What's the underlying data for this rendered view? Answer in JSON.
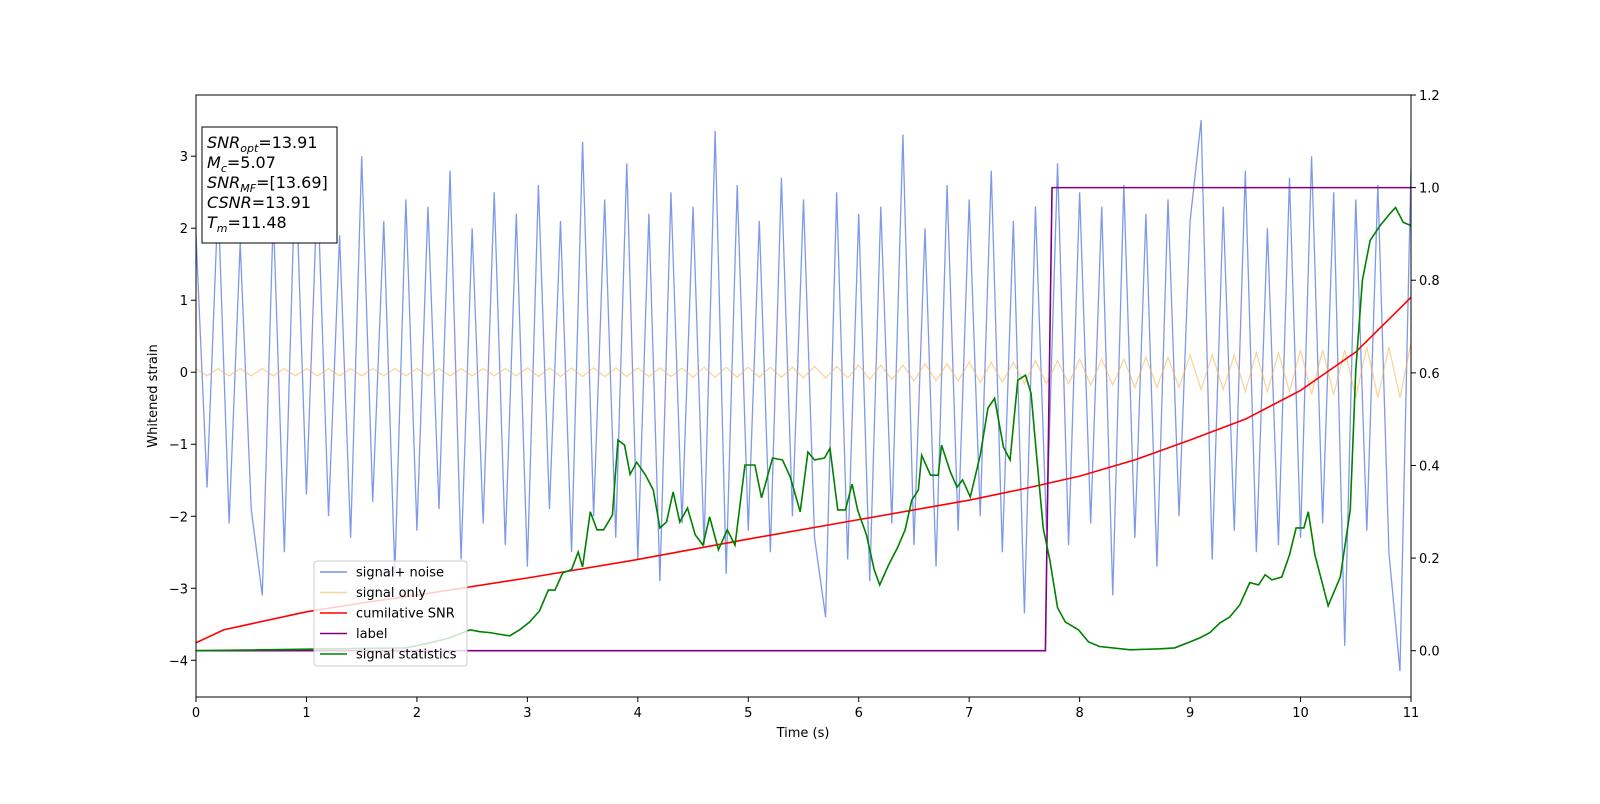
{
  "chart_data": {
    "type": "line",
    "xlabel": "Time (s)",
    "ylabel": "Whitened strain",
    "xlim": [
      0,
      11
    ],
    "xticks": [
      0,
      1,
      2,
      3,
      4,
      5,
      6,
      7,
      8,
      9,
      10,
      11
    ],
    "ylim": [
      -4.51,
      3.85
    ],
    "yticks": [
      {
        "value": -4,
        "label": "−4"
      },
      {
        "value": -3,
        "label": "−3"
      },
      {
        "value": -2,
        "label": "−2"
      },
      {
        "value": -1,
        "label": "−1"
      },
      0,
      1,
      2,
      3
    ],
    "y2lim": [
      -0.1,
      1.2
    ],
    "y2ticks": [
      {
        "value": 0,
        "label": "0.0"
      },
      0.2,
      0.4,
      0.6,
      0.8,
      {
        "value": 1,
        "label": "1.0"
      },
      1.2
    ],
    "grid": false,
    "annotation": [
      {
        "main": "SNR",
        "sub": "opt",
        "text": "=13.91"
      },
      {
        "main": "M",
        "sub": "c",
        "text": "=5.07"
      },
      {
        "main": "SNR",
        "sub": "MF",
        "text": "=[13.69]"
      },
      {
        "main": "CSNR",
        "text": "=13.91"
      },
      {
        "main": "T",
        "sub": "m",
        "text": "=11.48"
      }
    ],
    "x": [
      0,
      0.1,
      0.2,
      0.3,
      0.4,
      0.5,
      0.6,
      0.7,
      0.8,
      0.9,
      1,
      1.1,
      1.2,
      1.3,
      1.4,
      1.5,
      1.6,
      1.7,
      1.8,
      1.9,
      2,
      2.1,
      2.2,
      2.3,
      2.4,
      2.5,
      2.6,
      2.7,
      2.8,
      2.9,
      3,
      3.1,
      3.2,
      3.3,
      3.4,
      3.5,
      3.6,
      3.7,
      3.8,
      3.9,
      4,
      4.1,
      4.2,
      4.3,
      4.4,
      4.5,
      4.6,
      4.7,
      4.8,
      4.9,
      5,
      5.1,
      5.2,
      5.3,
      5.4,
      5.5,
      5.6,
      5.7,
      5.8,
      5.9,
      6,
      6.1,
      6.2,
      6.3,
      6.4,
      6.5,
      6.6,
      6.7,
      6.8,
      6.9,
      7,
      7.1,
      7.2,
      7.3,
      7.4,
      7.5,
      7.6,
      7.7,
      7.8,
      7.9,
      8,
      8.1,
      8.2,
      8.3,
      8.4,
      8.5,
      8.6,
      8.7,
      8.8,
      8.9,
      9,
      9.1,
      9.2,
      9.3,
      9.4,
      9.5,
      9.6,
      9.7,
      9.8,
      9.9,
      10,
      10.1,
      10.2,
      10.3,
      10.4,
      10.5,
      10.6,
      10.7,
      10.8,
      10.9,
      11
    ],
    "series": [
      {
        "name": "signal+ noise",
        "color": "#7793e8",
        "values": [
          1.9,
          -1.6,
          2.4,
          -2.1,
          1.8,
          -1.9,
          -3.1,
          2.2,
          -2.5,
          2.9,
          -1.7,
          2.6,
          -2.0,
          1.9,
          -2.3,
          3.0,
          -1.8,
          2.1,
          -2.8,
          2.4,
          -2.2,
          2.3,
          -1.9,
          2.8,
          -2.6,
          2.0,
          -2.1,
          2.5,
          -2.4,
          2.2,
          -2.7,
          2.6,
          -1.9,
          2.1,
          -2.5,
          3.2,
          -2.0,
          2.4,
          -2.3,
          2.9,
          -2.6,
          2.2,
          -2.9,
          2.5,
          -2.1,
          2.3,
          -2.4,
          3.35,
          -2.8,
          2.6,
          -2.2,
          2.1,
          -2.5,
          2.7,
          -2.0,
          2.4,
          -2.3,
          -3.4,
          2.5,
          -2.6,
          2.2,
          -2.9,
          2.3,
          -2.1,
          3.3,
          -2.4,
          2.0,
          -2.7,
          2.6,
          -2.2,
          2.4,
          -2.0,
          2.8,
          -2.5,
          2.1,
          -3.35,
          2.3,
          -2.2,
          2.9,
          -2.4,
          2.5,
          -2.1,
          2.3,
          -3.1,
          2.6,
          -2.3,
          2.2,
          -2.7,
          2.4,
          -2.0,
          2.1,
          3.5,
          -2.6,
          2.3,
          -2.2,
          2.8,
          -2.5,
          2.0,
          -2.4,
          2.7,
          -2.3,
          3.0,
          -2.1,
          2.5,
          -3.8,
          2.4,
          -2.2,
          2.6,
          -2.5,
          -4.15,
          2.85
        ]
      },
      {
        "name": "signal only",
        "color": "#f5b24a",
        "values": [
          0.05,
          -0.05,
          0.05,
          -0.05,
          0.05,
          -0.05,
          0.05,
          -0.05,
          0.05,
          -0.05,
          0.05,
          -0.05,
          0.05,
          -0.05,
          0.05,
          -0.05,
          0.05,
          -0.05,
          0.05,
          -0.05,
          0.05,
          -0.05,
          0.05,
          -0.05,
          0.05,
          -0.05,
          0.05,
          -0.05,
          0.05,
          -0.05,
          0.06,
          -0.06,
          0.06,
          -0.06,
          0.06,
          -0.06,
          0.06,
          -0.06,
          0.06,
          -0.06,
          0.06,
          -0.06,
          0.06,
          -0.06,
          0.06,
          -0.07,
          0.07,
          -0.07,
          0.07,
          -0.07,
          0.07,
          -0.07,
          0.07,
          -0.07,
          0.07,
          -0.08,
          0.08,
          -0.08,
          0.08,
          -0.08,
          0.1,
          -0.1,
          0.1,
          -0.1,
          0.1,
          -0.12,
          0.12,
          -0.12,
          0.12,
          -0.12,
          0.14,
          -0.14,
          0.14,
          -0.14,
          0.14,
          -0.16,
          0.16,
          -0.16,
          0.16,
          -0.16,
          0.18,
          -0.18,
          0.18,
          -0.18,
          0.18,
          -0.21,
          0.21,
          -0.21,
          0.21,
          -0.21,
          0.24,
          -0.24,
          0.24,
          -0.24,
          0.24,
          -0.27,
          0.27,
          -0.27,
          0.27,
          -0.27,
          0.31,
          -0.31,
          0.31,
          -0.31,
          0.31,
          -0.35,
          0.35,
          -0.35,
          0.35,
          -0.35,
          0.4
        ]
      },
      {
        "name": "cumilative SNR",
        "color": "red",
        "axis": "y2",
        "x": [
          0,
          0.25,
          0.5,
          1,
          1.5,
          2,
          3,
          4,
          5,
          6,
          7,
          7.5,
          8,
          8.5,
          9,
          9.5,
          10,
          10.5,
          11
        ],
        "values": [
          0.017,
          0.045,
          0.058,
          0.084,
          0.103,
          0.12,
          0.157,
          0.197,
          0.241,
          0.283,
          0.325,
          0.35,
          0.377,
          0.412,
          0.455,
          0.5,
          0.562,
          0.645,
          0.763
        ]
      },
      {
        "name": "label",
        "color": "purple",
        "axis": "y2",
        "x": [
          0,
          7.69,
          7.75,
          11
        ],
        "values": [
          0,
          0,
          1,
          1
        ]
      },
      {
        "name": "signal statistics",
        "color": "green",
        "axis": "y2",
        "x": [
          0,
          1.9,
          2.12,
          2.3,
          2.48,
          2.57,
          2.66,
          2.84,
          2.93,
          3.02,
          3.11,
          3.19,
          3.25,
          3.32,
          3.4,
          3.46,
          3.5,
          3.57,
          3.63,
          3.69,
          3.77,
          3.82,
          3.88,
          3.93,
          3.99,
          4.07,
          4.14,
          4.2,
          4.26,
          4.32,
          4.38,
          4.45,
          4.52,
          4.59,
          4.65,
          4.73,
          4.81,
          4.88,
          4.97,
          5.06,
          5.12,
          5.22,
          5.31,
          5.38,
          5.47,
          5.54,
          5.6,
          5.69,
          5.74,
          5.81,
          5.88,
          5.94,
          5.99,
          6.07,
          6.14,
          6.19,
          6.27,
          6.35,
          6.42,
          6.48,
          6.54,
          6.57,
          6.65,
          6.72,
          6.75,
          6.83,
          6.89,
          6.94,
          7.01,
          7.1,
          7.17,
          7.23,
          7.31,
          7.37,
          7.44,
          7.51,
          7.56,
          7.61,
          7.67,
          7.73,
          7.8,
          7.87,
          7.99,
          8.08,
          8.18,
          8.46,
          8.73,
          8.86,
          9,
          9.09,
          9.18,
          9.27,
          9.36,
          9.45,
          9.54,
          9.62,
          9.68,
          9.74,
          9.83,
          9.9,
          9.96,
          10.03,
          10.07,
          10.13,
          10.25,
          10.36,
          10.45,
          10.5,
          10.56,
          10.63,
          10.72,
          10.81,
          10.86,
          10.93,
          11
        ],
        "values": [
          0,
          0.006,
          0.017,
          0.028,
          0.045,
          0.041,
          0.039,
          0.032,
          0.045,
          0.062,
          0.086,
          0.131,
          0.131,
          0.168,
          0.175,
          0.213,
          0.181,
          0.3,
          0.261,
          0.261,
          0.293,
          0.455,
          0.444,
          0.381,
          0.407,
          0.379,
          0.347,
          0.265,
          0.278,
          0.343,
          0.278,
          0.308,
          0.25,
          0.228,
          0.289,
          0.218,
          0.261,
          0.228,
          0.401,
          0.401,
          0.33,
          0.416,
          0.412,
          0.375,
          0.3,
          0.429,
          0.412,
          0.416,
          0.437,
          0.304,
          0.304,
          0.36,
          0.304,
          0.25,
          0.175,
          0.142,
          0.185,
          0.222,
          0.261,
          0.325,
          0.347,
          0.422,
          0.379,
          0.379,
          0.444,
          0.386,
          0.353,
          0.369,
          0.332,
          0.422,
          0.524,
          0.545,
          0.44,
          0.412,
          0.584,
          0.595,
          0.556,
          0.422,
          0.265,
          0.196,
          0.093,
          0.062,
          0.045,
          0.019,
          0.009,
          0.002,
          0.004,
          0.006,
          0.019,
          0.028,
          0.039,
          0.06,
          0.073,
          0.099,
          0.147,
          0.142,
          0.164,
          0.153,
          0.159,
          0.207,
          0.265,
          0.265,
          0.3,
          0.207,
          0.097,
          0.159,
          0.304,
          0.606,
          0.8,
          0.886,
          0.918,
          0.944,
          0.957,
          0.925,
          0.918
        ]
      }
    ]
  }
}
